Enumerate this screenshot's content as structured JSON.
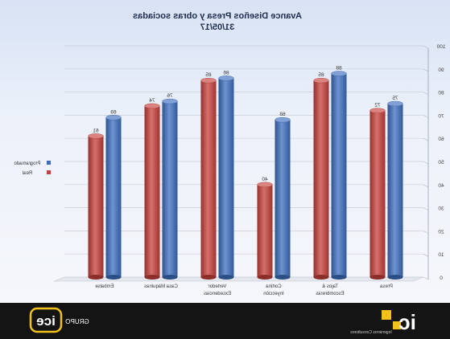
{
  "chart_data": {
    "type": "bar",
    "title": "Avance Diseños Presa y obras sociadas",
    "subtitle": "31/05/17",
    "categories": [
      "Embalse",
      "Casa Máquinas",
      "Vertedor Excedencias",
      "Cortina Inyección",
      "Tajos & Escombreras",
      "Presa"
    ],
    "series": [
      {
        "name": "Real",
        "color": "#c8403b",
        "values": [
          61,
          74,
          85,
          40,
          85,
          72
        ]
      },
      {
        "name": "Programado",
        "color": "#3d6fc0",
        "values": [
          69,
          76,
          86,
          68,
          88,
          75
        ]
      }
    ],
    "ylim": [
      0,
      100
    ],
    "yticks": [
      0,
      10,
      20,
      30,
      40,
      50,
      60,
      70,
      80,
      90,
      100
    ],
    "grid": true,
    "legend": "left",
    "mirrored": true
  },
  "footer": {
    "left_logo_text": "ice",
    "left_logo_caption": "GRUPO",
    "right_logo_text": "ic",
    "right_logo_caption": "Ingenieros Consultores"
  }
}
